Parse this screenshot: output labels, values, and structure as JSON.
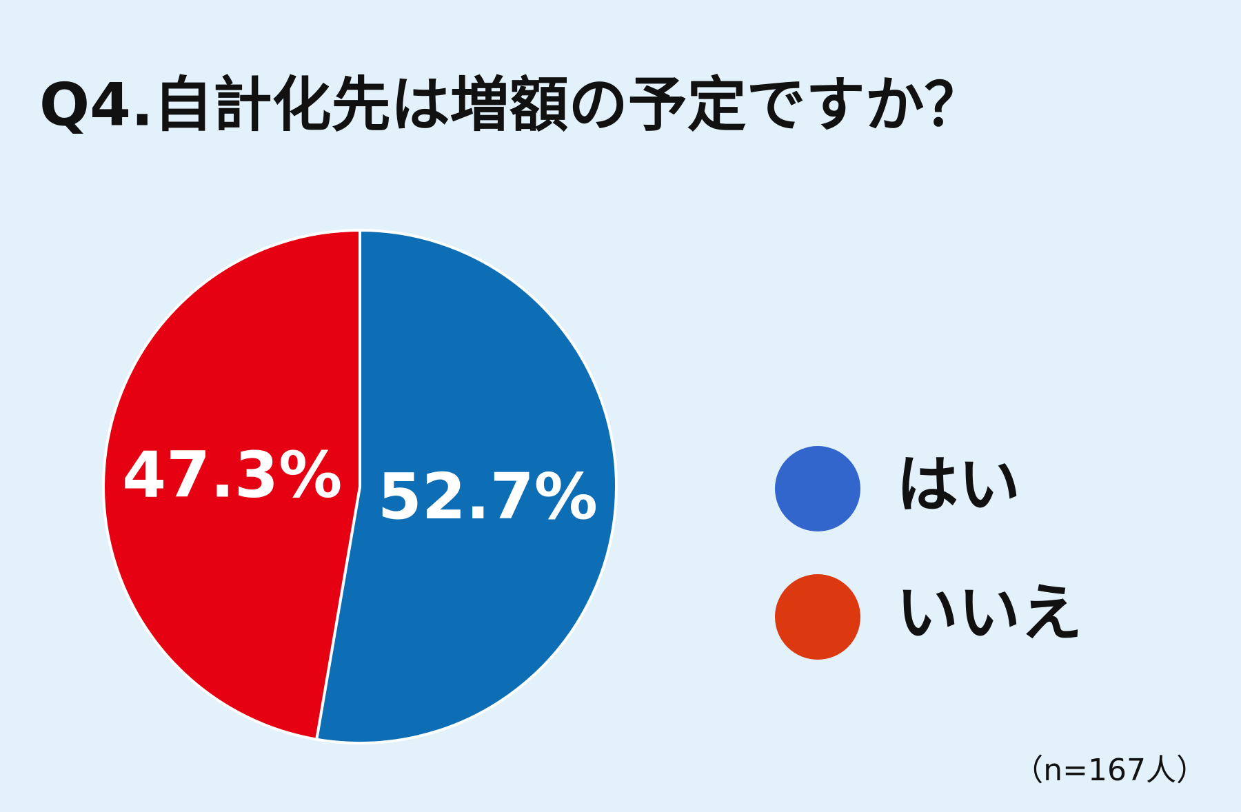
{
  "chart_data": {
    "type": "pie",
    "title": "Q4.自計化先は増額の予定ですか？",
    "categories": [
      "はい",
      "いいえ"
    ],
    "values": [
      52.7,
      47.3
    ],
    "value_labels": [
      "52.7%",
      "47.3%"
    ],
    "colors": [
      "#0e6eb5",
      "#e50012"
    ],
    "legend_colors": [
      "#3366cc",
      "#dd3911"
    ],
    "note": "（n=167人）"
  }
}
